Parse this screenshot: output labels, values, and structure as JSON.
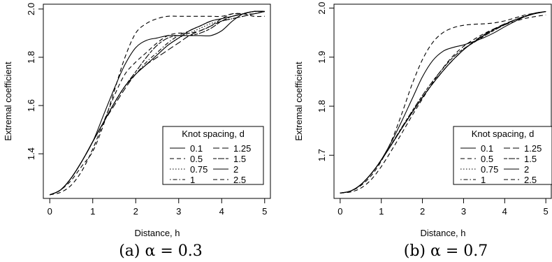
{
  "legend_title": "Knot spacing, d",
  "chart_data": [
    {
      "type": "line",
      "caption": "(a) α = 0.3",
      "xlabel": "Distance, h",
      "ylabel": "Extremal coefficient",
      "xlim": [
        -0.15,
        5.15
      ],
      "ylim": [
        1.215,
        2.02
      ],
      "xticks": [
        0,
        1,
        2,
        3,
        4,
        5
      ],
      "yticks": [
        1.4,
        1.6,
        1.8,
        2.0
      ],
      "ytick_labels": [
        "1.4",
        "1.6",
        "1.8",
        "2.0"
      ],
      "grid": false,
      "legend_position": "bottom-right",
      "x": [
        0,
        0.25,
        0.5,
        0.75,
        1,
        1.25,
        1.5,
        1.75,
        2,
        2.25,
        2.5,
        2.75,
        3,
        3.25,
        3.5,
        3.75,
        4,
        4.25,
        4.5,
        4.75,
        5
      ],
      "series": [
        {
          "name": "0.1",
          "dash": "solid",
          "values": [
            1.23,
            1.25,
            1.3,
            1.37,
            1.45,
            1.53,
            1.61,
            1.68,
            1.73,
            1.77,
            1.81,
            1.85,
            1.88,
            1.91,
            1.93,
            1.95,
            1.96,
            1.97,
            1.98,
            1.99,
            1.99
          ]
        },
        {
          "name": "0.5",
          "dash": "dash",
          "values": [
            1.23,
            1.25,
            1.29,
            1.35,
            1.41,
            1.52,
            1.66,
            1.8,
            1.9,
            1.94,
            1.96,
            1.97,
            1.97,
            1.97,
            1.97,
            1.97,
            1.97,
            1.98,
            1.98,
            1.98,
            1.99
          ]
        },
        {
          "name": "0.75",
          "dash": "dot",
          "values": [
            1.23,
            1.25,
            1.3,
            1.37,
            1.45,
            1.53,
            1.61,
            1.68,
            1.73,
            1.77,
            1.81,
            1.85,
            1.88,
            1.9,
            1.92,
            1.94,
            1.95,
            1.96,
            1.97,
            1.98,
            1.99
          ]
        },
        {
          "name": "1",
          "dash": "dashdot",
          "values": [
            1.23,
            1.25,
            1.3,
            1.37,
            1.45,
            1.53,
            1.61,
            1.68,
            1.73,
            1.78,
            1.82,
            1.86,
            1.89,
            1.91,
            1.93,
            1.95,
            1.96,
            1.97,
            1.98,
            1.99,
            1.99
          ]
        },
        {
          "name": "1.25",
          "dash": "longdash",
          "values": [
            1.23,
            1.25,
            1.3,
            1.37,
            1.45,
            1.53,
            1.6,
            1.67,
            1.73,
            1.77,
            1.8,
            1.83,
            1.86,
            1.89,
            1.91,
            1.93,
            1.95,
            1.96,
            1.97,
            1.98,
            1.99
          ]
        },
        {
          "name": "1.5",
          "dash": "twodash",
          "values": [
            1.23,
            1.25,
            1.3,
            1.37,
            1.45,
            1.53,
            1.61,
            1.68,
            1.74,
            1.8,
            1.85,
            1.88,
            1.89,
            1.89,
            1.9,
            1.92,
            1.95,
            1.97,
            1.98,
            1.99,
            1.99
          ]
        },
        {
          "name": "2",
          "dash": "solid",
          "values": [
            1.23,
            1.25,
            1.3,
            1.37,
            1.45,
            1.56,
            1.67,
            1.77,
            1.84,
            1.87,
            1.88,
            1.89,
            1.89,
            1.89,
            1.89,
            1.89,
            1.91,
            1.95,
            1.98,
            1.99,
            1.99
          ]
        },
        {
          "name": "2.5",
          "dash": "dash",
          "values": [
            1.23,
            1.24,
            1.27,
            1.33,
            1.42,
            1.53,
            1.64,
            1.73,
            1.78,
            1.82,
            1.86,
            1.89,
            1.9,
            1.9,
            1.91,
            1.93,
            1.96,
            1.98,
            1.98,
            1.97,
            1.97
          ]
        }
      ]
    },
    {
      "type": "line",
      "caption": "(b) α = 0.7",
      "xlabel": "Distance, h",
      "ylabel": "Extremal coefficient",
      "xlim": [
        -0.15,
        5.15
      ],
      "ylim": [
        1.612,
        2.008
      ],
      "xticks": [
        0,
        1,
        2,
        3,
        4,
        5
      ],
      "yticks": [
        1.7,
        1.8,
        1.9,
        2.0
      ],
      "ytick_labels": [
        "1.7",
        "1.8",
        "1.9",
        "2.0"
      ],
      "grid": false,
      "legend_position": "bottom-right",
      "x": [
        0,
        0.25,
        0.5,
        0.75,
        1,
        1.25,
        1.5,
        1.75,
        2,
        2.25,
        2.5,
        2.75,
        3,
        3.25,
        3.5,
        3.75,
        4,
        4.25,
        4.5,
        4.75,
        5
      ],
      "series": [
        {
          "name": "0.1",
          "dash": "solid",
          "values": [
            1.623,
            1.627,
            1.64,
            1.662,
            1.69,
            1.722,
            1.755,
            1.787,
            1.818,
            1.846,
            1.872,
            1.895,
            1.915,
            1.931,
            1.945,
            1.957,
            1.967,
            1.976,
            1.983,
            1.989,
            1.993
          ]
        },
        {
          "name": "0.5",
          "dash": "dash",
          "values": [
            1.623,
            1.627,
            1.638,
            1.658,
            1.688,
            1.73,
            1.785,
            1.845,
            1.895,
            1.93,
            1.95,
            1.96,
            1.965,
            1.967,
            1.968,
            1.97,
            1.974,
            1.98,
            1.986,
            1.99,
            1.993
          ]
        },
        {
          "name": "0.75",
          "dash": "dot",
          "values": [
            1.623,
            1.627,
            1.64,
            1.662,
            1.69,
            1.722,
            1.755,
            1.787,
            1.818,
            1.846,
            1.872,
            1.895,
            1.915,
            1.931,
            1.945,
            1.957,
            1.967,
            1.976,
            1.983,
            1.989,
            1.993
          ]
        },
        {
          "name": "1",
          "dash": "dashdot",
          "values": [
            1.623,
            1.627,
            1.64,
            1.662,
            1.69,
            1.722,
            1.755,
            1.787,
            1.818,
            1.846,
            1.872,
            1.895,
            1.915,
            1.931,
            1.945,
            1.957,
            1.967,
            1.976,
            1.983,
            1.989,
            1.993
          ]
        },
        {
          "name": "1.25",
          "dash": "longdash",
          "values": [
            1.623,
            1.627,
            1.64,
            1.662,
            1.69,
            1.722,
            1.755,
            1.787,
            1.818,
            1.846,
            1.872,
            1.895,
            1.915,
            1.932,
            1.946,
            1.958,
            1.968,
            1.976,
            1.983,
            1.989,
            1.993
          ]
        },
        {
          "name": "1.5",
          "dash": "twodash",
          "values": [
            1.623,
            1.627,
            1.64,
            1.662,
            1.69,
            1.723,
            1.757,
            1.79,
            1.822,
            1.851,
            1.877,
            1.9,
            1.917,
            1.93,
            1.943,
            1.955,
            1.966,
            1.976,
            1.984,
            1.99,
            1.993
          ]
        },
        {
          "name": "2",
          "dash": "solid",
          "values": [
            1.623,
            1.627,
            1.64,
            1.662,
            1.691,
            1.728,
            1.77,
            1.815,
            1.86,
            1.893,
            1.912,
            1.92,
            1.925,
            1.932,
            1.94,
            1.95,
            1.962,
            1.973,
            1.983,
            1.99,
            1.993
          ]
        },
        {
          "name": "2.5",
          "dash": "dash",
          "values": [
            1.623,
            1.625,
            1.633,
            1.65,
            1.677,
            1.71,
            1.745,
            1.781,
            1.815,
            1.848,
            1.878,
            1.903,
            1.922,
            1.936,
            1.948,
            1.958,
            1.966,
            1.973,
            1.979,
            1.983,
            1.986
          ]
        }
      ]
    }
  ]
}
